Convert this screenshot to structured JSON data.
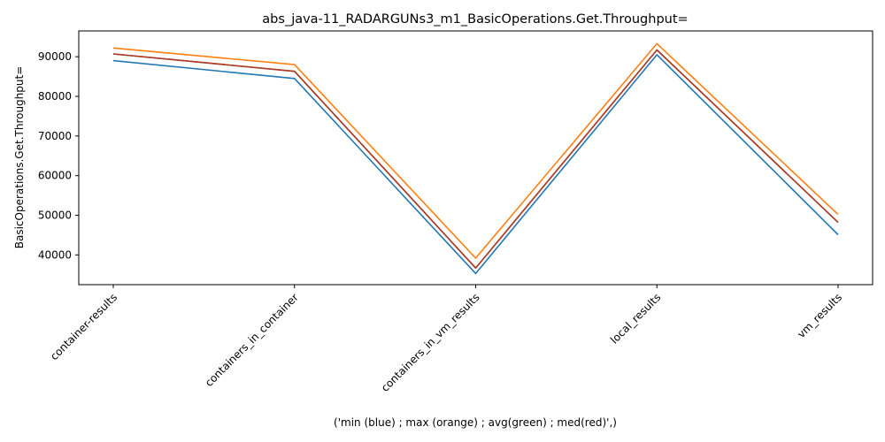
{
  "chart_data": {
    "type": "line",
    "title": "abs_java-11_RADARGUNs3_m1_BasicOperations.Get.Throughput=",
    "xlabel": "('min (blue) ; max (orange) ; avg(green) ; med(red)',)",
    "ylabel": "BasicOperations.Get.Throughput=",
    "categories": [
      "container-results",
      "containers_in_container",
      "containers_in_vm_results",
      "local_results",
      "vm_results"
    ],
    "ylim": [
      32500,
      96500
    ],
    "yticks": [
      40000,
      50000,
      60000,
      70000,
      80000,
      90000
    ],
    "grid": false,
    "series": [
      {
        "values": [
          89000,
          84500,
          35300,
          90500,
          45100
        ],
        "color": "#1f77b4"
      },
      {
        "values": [
          92200,
          88000,
          39200,
          93300,
          50200
        ],
        "color": "#ff7f0e"
      },
      {
        "values": [
          90700,
          86300,
          36700,
          91700,
          48200
        ],
        "color": "#2ca02c"
      },
      {
        "values": [
          90700,
          86300,
          36700,
          91700,
          48200
        ],
        "color": "#b5362a"
      }
    ]
  }
}
